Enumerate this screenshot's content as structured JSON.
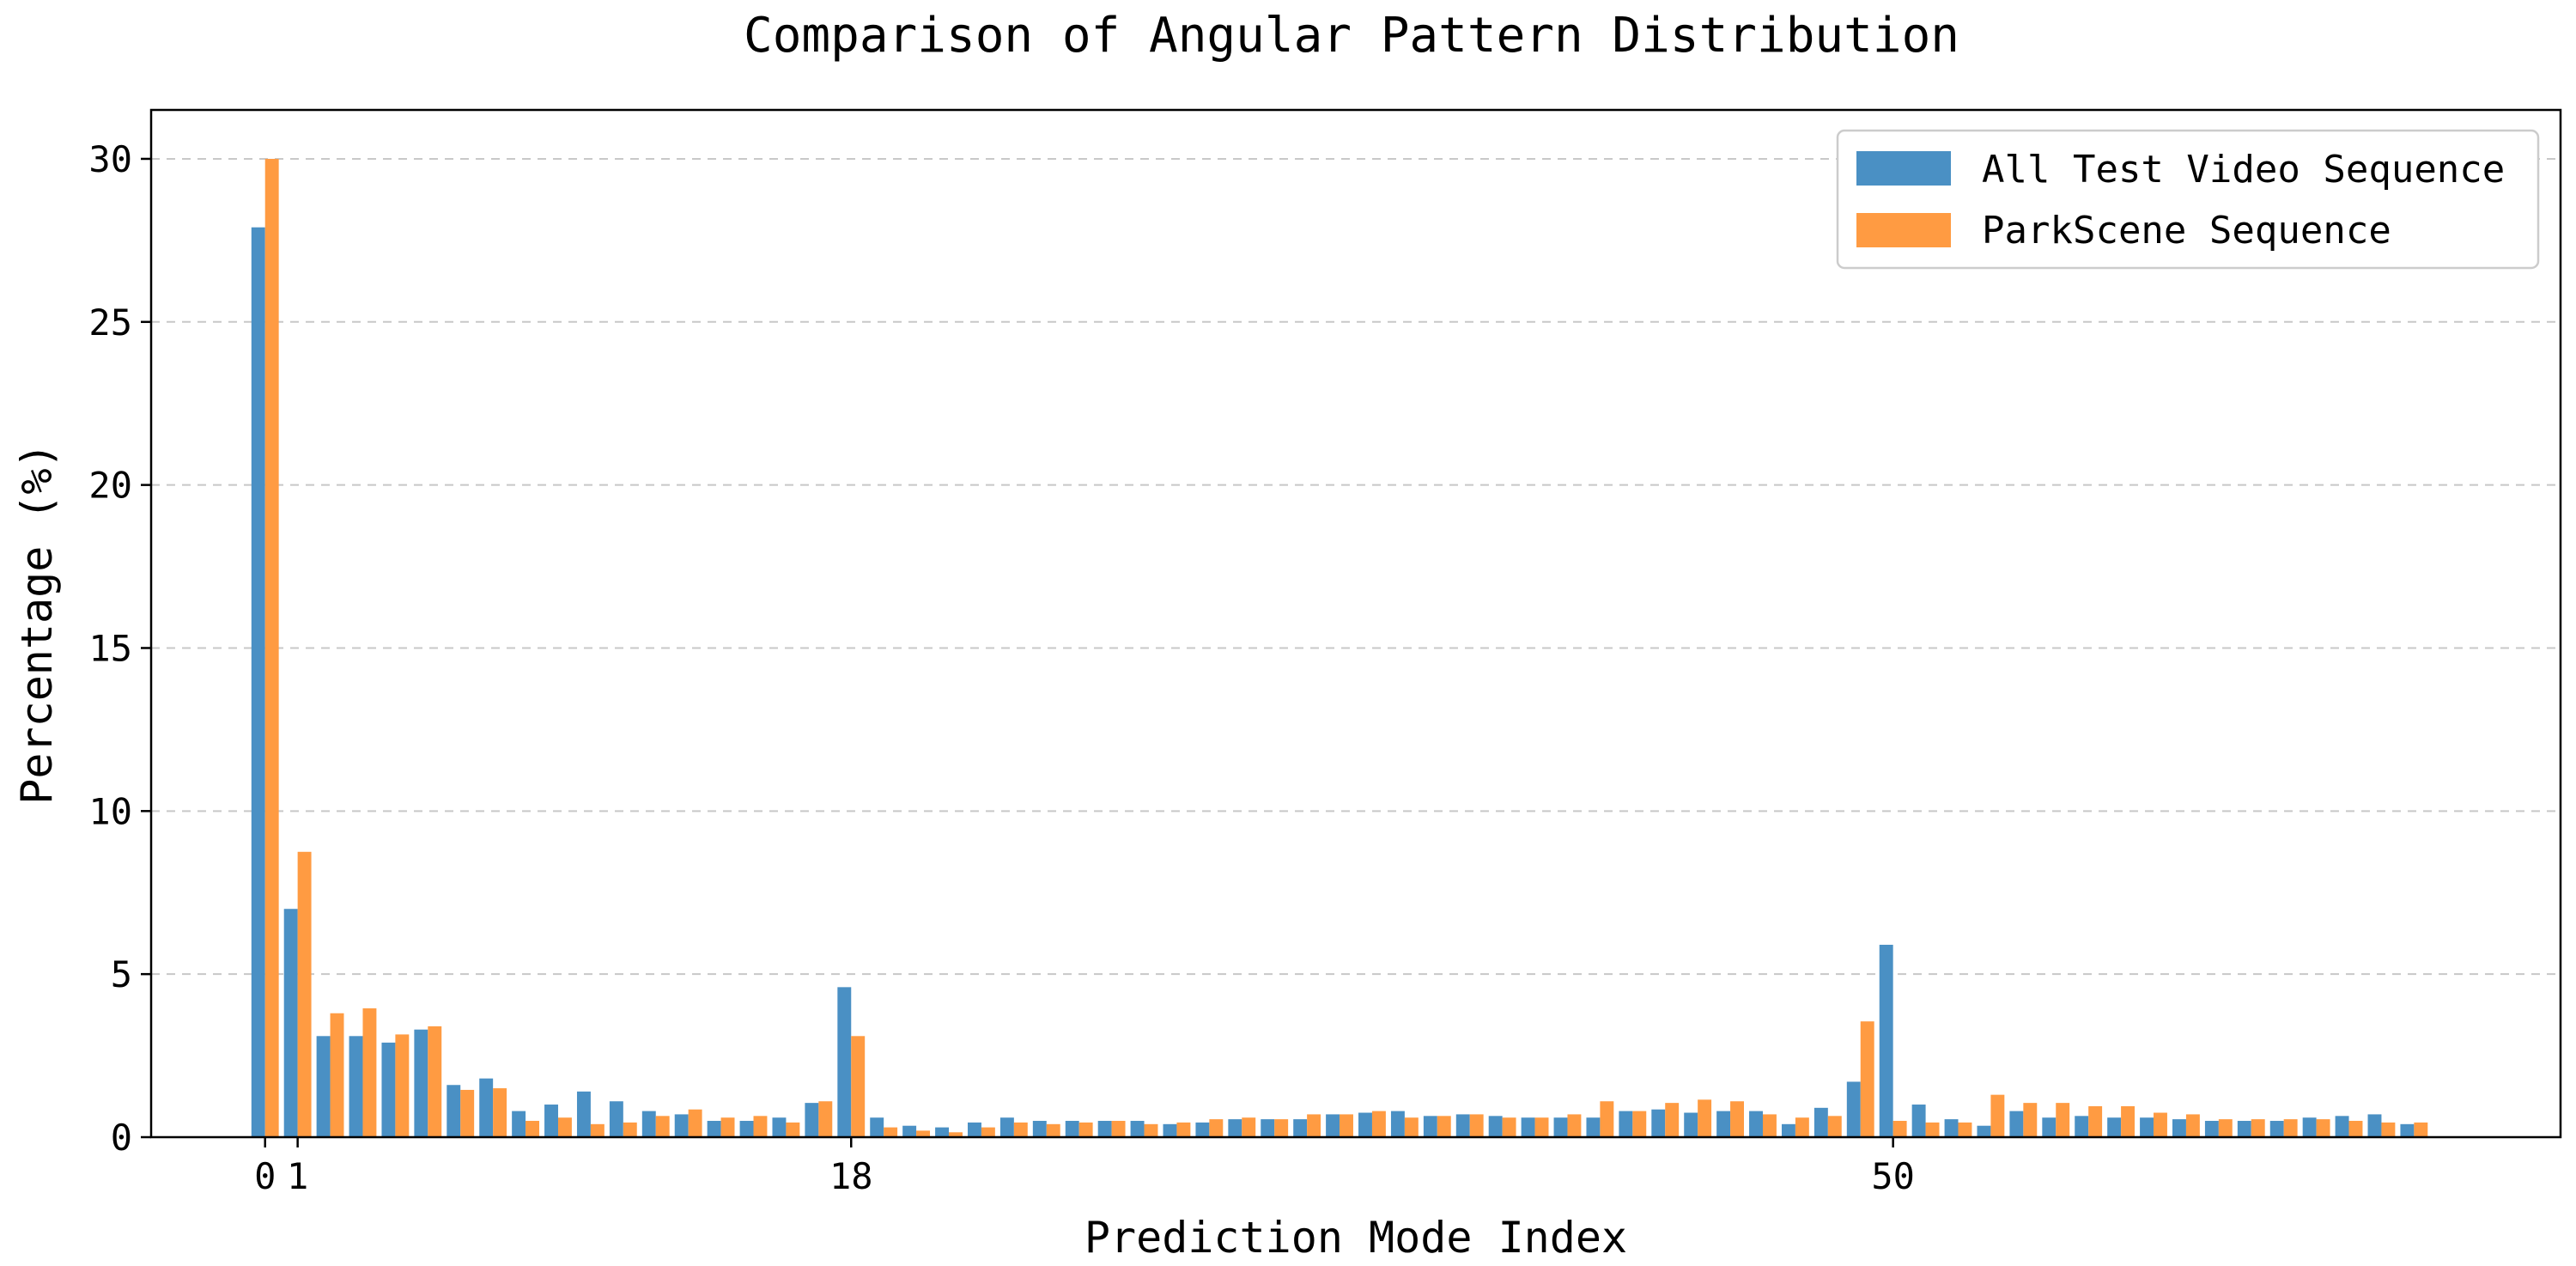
{
  "chart_data": {
    "type": "bar",
    "title": "Comparison of Angular Pattern Distribution",
    "xlabel": "Prediction Mode Index",
    "ylabel": "Percentage (%)",
    "ylim": [
      0,
      31.5
    ],
    "xlim": [
      -3.5,
      70.5
    ],
    "grid": "horizontal dashed",
    "legend_position": "top-right",
    "x": [
      0,
      1,
      2,
      3,
      4,
      5,
      6,
      7,
      8,
      9,
      10,
      11,
      12,
      13,
      14,
      15,
      16,
      17,
      18,
      19,
      20,
      21,
      22,
      23,
      24,
      25,
      26,
      27,
      28,
      29,
      30,
      31,
      32,
      33,
      34,
      35,
      36,
      37,
      38,
      39,
      40,
      41,
      42,
      43,
      44,
      45,
      46,
      47,
      48,
      49,
      50,
      51,
      52,
      53,
      54,
      55,
      56,
      57,
      58,
      59,
      60,
      61,
      62,
      63,
      64,
      65,
      66
    ],
    "xticks": [
      0,
      1,
      18,
      50
    ],
    "xtick_labels": [
      "0",
      "1",
      "18",
      "50"
    ],
    "yticks": [
      0,
      5,
      10,
      15,
      20,
      25,
      30
    ],
    "ytick_labels": [
      "0",
      "5",
      "10",
      "15",
      "20",
      "25",
      "30"
    ],
    "series": [
      {
        "name": "All Test Video Sequence",
        "color": "#4a90c4",
        "values": [
          27.9,
          7.0,
          3.1,
          3.1,
          2.9,
          3.3,
          1.6,
          1.8,
          0.8,
          1.0,
          1.4,
          1.1,
          0.8,
          0.7,
          0.5,
          0.5,
          0.6,
          1.05,
          4.6,
          0.6,
          0.35,
          0.3,
          0.45,
          0.6,
          0.5,
          0.5,
          0.5,
          0.5,
          0.4,
          0.45,
          0.55,
          0.55,
          0.55,
          0.7,
          0.75,
          0.8,
          0.65,
          0.7,
          0.65,
          0.6,
          0.6,
          0.6,
          0.8,
          0.85,
          0.75,
          0.8,
          0.8,
          0.4,
          0.9,
          1.7,
          5.9,
          1.0,
          0.55,
          0.35,
          0.8,
          0.6,
          0.65,
          0.6,
          0.6,
          0.55,
          0.5,
          0.5,
          0.5,
          0.6,
          0.65,
          0.7,
          0.4
        ]
      },
      {
        "name": "ParkScene Sequence",
        "color": "#ff9b42",
        "values": [
          30.0,
          8.75,
          3.8,
          3.95,
          3.15,
          3.4,
          1.45,
          1.5,
          0.5,
          0.6,
          0.4,
          0.45,
          0.65,
          0.85,
          0.6,
          0.65,
          0.45,
          1.1,
          3.1,
          0.3,
          0.2,
          0.15,
          0.3,
          0.45,
          0.4,
          0.45,
          0.5,
          0.4,
          0.45,
          0.55,
          0.6,
          0.55,
          0.7,
          0.7,
          0.8,
          0.6,
          0.65,
          0.7,
          0.6,
          0.6,
          0.7,
          1.1,
          0.8,
          1.05,
          1.15,
          1.1,
          0.7,
          0.6,
          0.65,
          3.55,
          0.5,
          0.45,
          0.45,
          1.3,
          1.05,
          1.05,
          0.95,
          0.95,
          0.75,
          0.7,
          0.55,
          0.55,
          0.55,
          0.55,
          0.5,
          0.45,
          0.45
        ]
      }
    ]
  }
}
